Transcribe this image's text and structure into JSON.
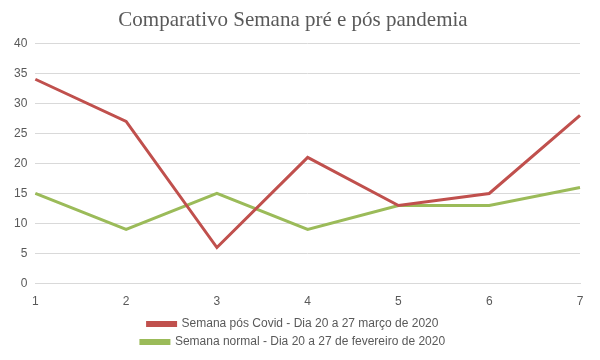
{
  "chart_data": {
    "type": "line",
    "title": "Comparativo Semana pré e pós pandemia",
    "categories": [
      "1",
      "2",
      "3",
      "4",
      "5",
      "6",
      "7"
    ],
    "series": [
      {
        "name": "Semana pós Covid - Dia 20 a 27 março de 2020",
        "color": "#c0504d",
        "values": [
          34,
          27,
          6,
          21,
          13,
          15,
          28
        ]
      },
      {
        "name": "Semana normal - Dia 20 a 27 de fevereiro de 2020",
        "color": "#9bbb59",
        "values": [
          15,
          9,
          15,
          9,
          13,
          13,
          16
        ]
      }
    ],
    "ylim": [
      0,
      40
    ],
    "yticks": [
      0,
      5,
      10,
      15,
      20,
      25,
      30,
      35,
      40
    ],
    "grid": true,
    "legend": "bottom"
  }
}
